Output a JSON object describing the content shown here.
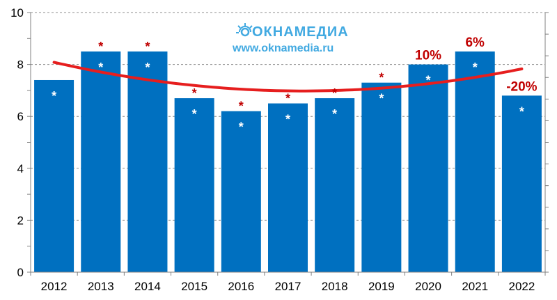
{
  "chart_data": {
    "type": "bar",
    "categories": [
      "2012",
      "2013",
      "2014",
      "2015",
      "2016",
      "2017",
      "2018",
      "2019",
      "2020",
      "2021",
      "2022"
    ],
    "values": [
      7.4,
      8.5,
      8.5,
      6.7,
      6.2,
      6.5,
      6.7,
      7.3,
      8.0,
      8.5,
      6.8
    ],
    "ylim": [
      0,
      10
    ],
    "yticks": [
      "0",
      "2",
      "4",
      "6",
      "8",
      "10"
    ],
    "bar_color": "#0070c0",
    "trend_color": "#e61e1e",
    "trend_line": "polynomial",
    "bar_markers": [
      "*",
      "*",
      "*",
      "*",
      "*",
      "*",
      "*",
      "*",
      "*",
      "*",
      "*"
    ],
    "red_markers": [
      "",
      "*",
      "*",
      "*",
      "*",
      "*",
      "*",
      "*",
      "",
      "",
      ""
    ],
    "annotations": [
      "",
      "",
      "",
      "",
      "",
      "",
      "",
      "",
      "10%",
      "6%",
      "-20%"
    ],
    "grid": "dashed horizontal"
  },
  "watermark": {
    "brand": "ОКНАМЕДИА",
    "url": "www.oknamedia.ru"
  }
}
